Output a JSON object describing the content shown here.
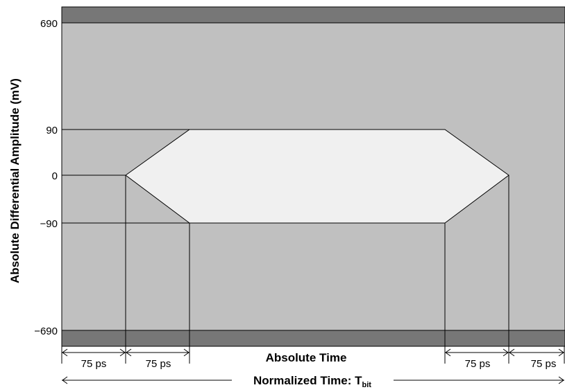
{
  "diagram": {
    "y_axis_label": "Absolute Differential Amplitude (mV)",
    "y_ticks": [
      "690",
      "90",
      "0",
      "−90",
      "−690"
    ],
    "x_label_absolute": "Absolute Time",
    "x_label_normalized": "Normalized Time: T",
    "x_label_normalized_subscript": "bit",
    "dimensions": [
      "75 ps",
      "75 ps",
      "75 ps",
      "75 ps"
    ],
    "colors": {
      "forbidden_outer": "#777777",
      "forbidden_region": "#c0c0c0",
      "eye_opening": "#f0f0f0",
      "lines": "#000000"
    }
  }
}
